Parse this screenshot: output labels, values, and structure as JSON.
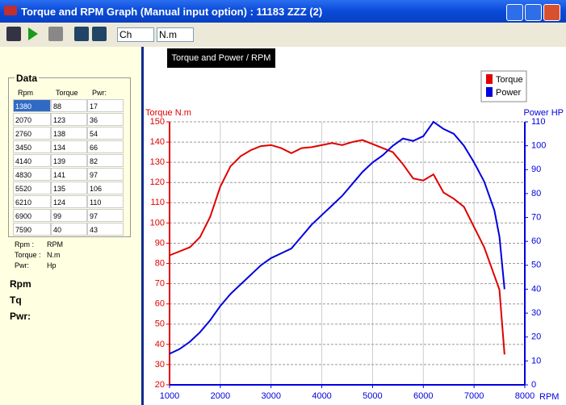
{
  "window": {
    "title": "Torque and RPM Graph (Manual input option) : 11183 ZZZ (2)"
  },
  "toolbar": {
    "dropdowns": [
      "Ch",
      "N.m"
    ]
  },
  "panel": {
    "title": "Data",
    "columns": [
      "Rpm",
      "Torque",
      "Pwr:"
    ],
    "rows": [
      [
        1380,
        88,
        17
      ],
      [
        2070,
        123,
        36
      ],
      [
        2760,
        138,
        54
      ],
      [
        3450,
        134,
        66
      ],
      [
        4140,
        139,
        82
      ],
      [
        4830,
        141,
        97
      ],
      [
        5520,
        135,
        106
      ],
      [
        6210,
        124,
        110
      ],
      [
        6900,
        99,
        97
      ],
      [
        7590,
        40,
        43
      ]
    ],
    "units": [
      [
        "Rpm :",
        "RPM"
      ],
      [
        "Torque :",
        "N.m"
      ],
      [
        "Pwr:",
        "Hp"
      ]
    ],
    "readouts": [
      "Rpm",
      "Tq",
      "Pwr:"
    ]
  },
  "chart_data": {
    "type": "line",
    "title": "Torque and Power / RPM",
    "y_label": "Torque N.m",
    "y2_label": "Power HP",
    "x_label": "RPM",
    "x": [
      1000,
      1200,
      1400,
      1600,
      1800,
      2000,
      2200,
      2400,
      2600,
      2800,
      3000,
      3200,
      3400,
      3600,
      3800,
      4000,
      4200,
      4400,
      4600,
      4800,
      5000,
      5200,
      5400,
      5600,
      5800,
      6000,
      6200,
      6400,
      6600,
      6800,
      7000,
      7200,
      7400,
      7500,
      7600
    ],
    "series": [
      {
        "name": "Torque",
        "color": "#e00000",
        "values": [
          84,
          86,
          88,
          93,
          103,
          118,
          128,
          133,
          136,
          138,
          138.5,
          137,
          134.5,
          137,
          137.5,
          138.5,
          139.5,
          138.5,
          140,
          141,
          139,
          137,
          135,
          129,
          122,
          121,
          124,
          115,
          112,
          108,
          98,
          88,
          74,
          67,
          35
        ]
      },
      {
        "name": "Power",
        "color": "#0000e0",
        "axis": "y2",
        "values": [
          13,
          15,
          18,
          22,
          27,
          33,
          38,
          42,
          46,
          50,
          53,
          55,
          57,
          62,
          67,
          71,
          75,
          79,
          84,
          89,
          93,
          96,
          100,
          103,
          102,
          104,
          110,
          107,
          105,
          100,
          93,
          85,
          73,
          62,
          40
        ]
      }
    ],
    "xlim": [
      1000,
      8000
    ],
    "xticks": [
      1000,
      2000,
      3000,
      4000,
      5000,
      6000,
      7000,
      8000
    ],
    "ylim": [
      20,
      150
    ],
    "yticks": [
      20,
      30,
      40,
      50,
      60,
      70,
      80,
      90,
      100,
      110,
      120,
      130,
      140,
      150
    ],
    "y2lim": [
      0,
      110
    ],
    "y2ticks": [
      0,
      10,
      20,
      30,
      40,
      50,
      60,
      70,
      80,
      90,
      100,
      110
    ],
    "grid": true,
    "legend": "top-right"
  }
}
